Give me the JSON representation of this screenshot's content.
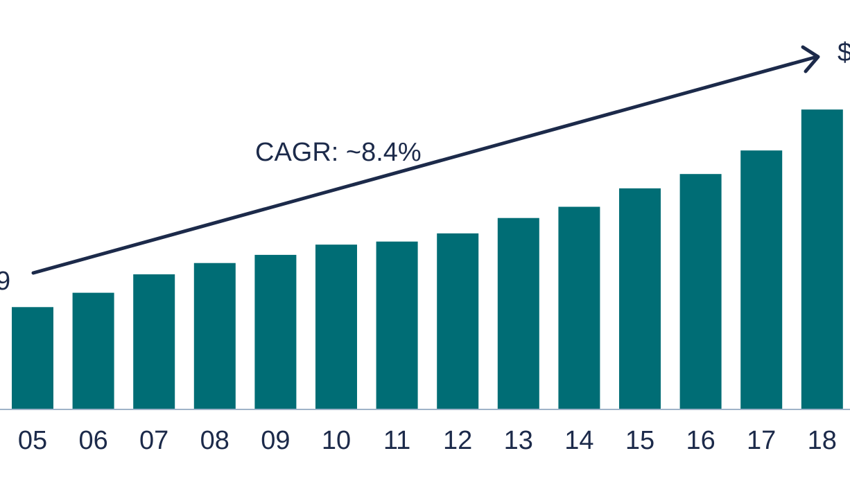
{
  "chart_data": {
    "type": "bar",
    "categories": [
      "05",
      "06",
      "07",
      "08",
      "09",
      "10",
      "11",
      "12",
      "13",
      "14",
      "15",
      "16",
      "17",
      "18"
    ],
    "values": [
      10,
      11.4,
      13.2,
      14.3,
      15.1,
      16.1,
      16.4,
      17.2,
      18.7,
      19.8,
      21.6,
      23.0,
      25.3,
      29.3
    ],
    "ylim": [
      0,
      40
    ],
    "grid": false,
    "legend": "none",
    "bar_color": "#006d75",
    "annotations": {
      "cagr": "CAGR: ~8.4%",
      "start_label": "9",
      "end_label": "$"
    },
    "colors": {
      "bars": "#006d75",
      "text": "#1c2a4a",
      "arrow": "#1c2a4a",
      "baseline": "#9fb3c8"
    }
  }
}
